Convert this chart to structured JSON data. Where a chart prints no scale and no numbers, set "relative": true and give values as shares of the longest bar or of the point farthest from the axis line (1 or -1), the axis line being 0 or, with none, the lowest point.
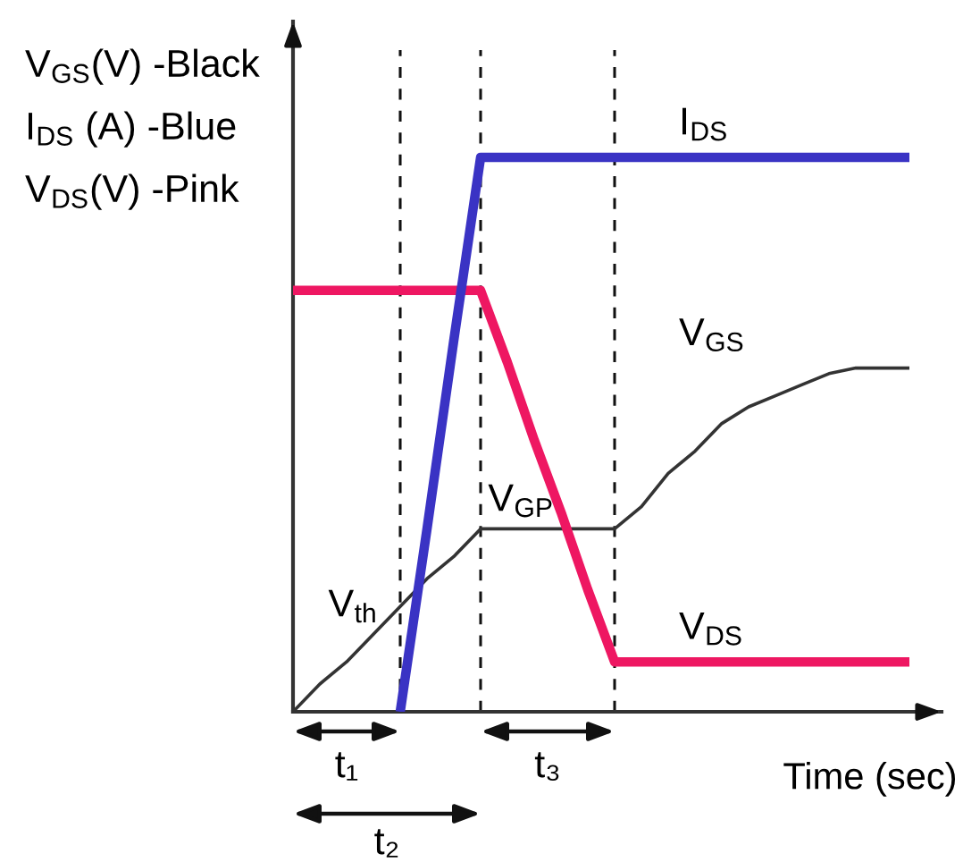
{
  "chart_data": {
    "type": "line",
    "relative": true,
    "xlabel": "Time (sec)",
    "grid": "x",
    "categories": [
      null,
      null,
      null,
      null,
      null,
      null,
      null,
      null,
      null,
      null,
      null,
      null,
      null,
      null,
      null,
      null,
      null,
      null,
      null,
      null,
      null,
      null,
      null,
      null
    ],
    "series": [
      {
        "name": "V$_{GS}$",
        "color": "#333333",
        "values": [
          0,
          0.05,
          0.09,
          0.14,
          0.19,
          0.24,
          0.28,
          0.33,
          0.33,
          0.33,
          0.33,
          0.33,
          0.33,
          0.37,
          0.43,
          0.47,
          0.52,
          0.55,
          0.57,
          0.59,
          0.61,
          0.62,
          0.62,
          0.62
        ]
      },
      {
        "name": "V$_{DS}$",
        "color": "#ee1762",
        "values": [
          0.76,
          0.76,
          0.76,
          0.76,
          0.76,
          0.76,
          0.76,
          0.76,
          0.63,
          0.49,
          0.36,
          0.22,
          0.09,
          0.09,
          0.09,
          0.09,
          0.09,
          0.09,
          0.09,
          0.09,
          0.09,
          0.09,
          0.09,
          0.09
        ]
      },
      {
        "name": "I$_{DS}$",
        "color": "#3a33c4",
        "values": [
          null,
          null,
          null,
          null,
          0,
          0.33,
          0.67,
          1,
          1,
          1,
          1,
          1,
          1,
          1,
          1,
          1,
          1,
          1,
          1,
          1,
          1,
          1,
          1,
          1
        ]
      }
    ],
    "annotations": [
      "V$_{GS}$(V) -Black",
      "I$_{DS}$ (A) -Blue",
      "V$_{DS}$(V) -Pink",
      "t₁",
      "t₂",
      "t₃",
      "V$_{th}$",
      {
        "text": "V$_{GP}$",
        "y": 0.33
      }
    ]
  }
}
